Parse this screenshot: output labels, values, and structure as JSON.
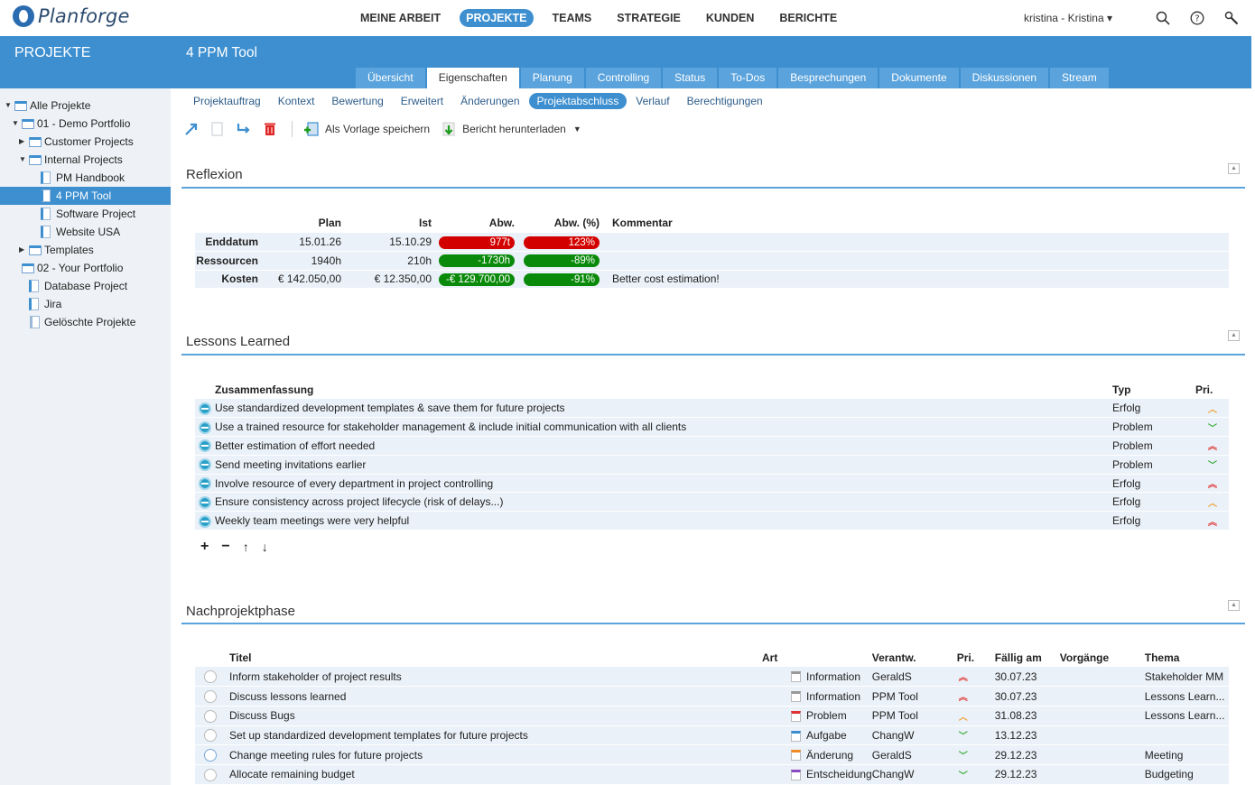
{
  "app": {
    "brand": "Planforge"
  },
  "mainnav": [
    "MEINE ARBEIT",
    "PROJEKTE",
    "TEAMS",
    "STRATEGIE",
    "KUNDEN",
    "BERICHTE"
  ],
  "mainnav_active": "PROJEKTE",
  "user": {
    "label": "kristina - Kristina"
  },
  "sidebar": {
    "header": "PROJEKTE",
    "items": [
      {
        "label": "Alle Projekte",
        "level": 0,
        "type": "folder",
        "expanded": true
      },
      {
        "label": "01 - Demo Portfolio",
        "level": 1,
        "type": "folder",
        "expanded": true
      },
      {
        "label": "Customer Projects",
        "level": 2,
        "type": "folder",
        "expanded": false
      },
      {
        "label": "Internal Projects",
        "level": 2,
        "type": "folder",
        "expanded": true
      },
      {
        "label": "PM Handbook",
        "level": 3,
        "type": "project"
      },
      {
        "label": "4 PPM Tool",
        "level": 3,
        "type": "project",
        "selected": true
      },
      {
        "label": "Software Project",
        "level": 3,
        "type": "project"
      },
      {
        "label": "Website USA",
        "level": 3,
        "type": "project"
      },
      {
        "label": "Templates",
        "level": 2,
        "type": "folder",
        "expanded": false
      },
      {
        "label": "02 - Your Portfolio",
        "level": 1,
        "type": "folder"
      },
      {
        "label": "Database Project",
        "level": 1,
        "type": "project"
      },
      {
        "label": "Jira",
        "level": 1,
        "type": "project"
      },
      {
        "label": "Gelöschte Projekte",
        "level": 1,
        "type": "trash"
      }
    ]
  },
  "project": {
    "title": "4 PPM Tool"
  },
  "tabs": [
    "Übersicht",
    "Eigenschaften",
    "Planung",
    "Controlling",
    "Status",
    "To-Dos",
    "Besprechungen",
    "Dokumente",
    "Diskussionen",
    "Stream"
  ],
  "tabs_active": "Eigenschaften",
  "subtabs": [
    "Projektauftrag",
    "Kontext",
    "Bewertung",
    "Erweitert",
    "Änderungen",
    "Projektabschluss",
    "Verlauf",
    "Berechtigungen"
  ],
  "subtabs_active": "Projektabschluss",
  "toolbar": {
    "save_template": "Als Vorlage speichern",
    "download_report": "Bericht herunterladen"
  },
  "reflexion": {
    "title": "Reflexion",
    "headers": [
      "Plan",
      "Ist",
      "Abw.",
      "Abw. (%)",
      "Kommentar"
    ],
    "rows": [
      {
        "label": "Enddatum",
        "plan": "15.01.26",
        "ist": "15.10.29",
        "abw": "977t",
        "abw_pct": "123%",
        "status": "red",
        "comment": ""
      },
      {
        "label": "Ressourcen",
        "plan": "1940h",
        "ist": "210h",
        "abw": "-1730h",
        "abw_pct": "-89%",
        "status": "green",
        "comment": ""
      },
      {
        "label": "Kosten",
        "plan": "€ 142.050,00",
        "ist": "€ 12.350,00",
        "abw": "-€ 129.700,00",
        "abw_pct": "-91%",
        "status": "green",
        "comment": "Better cost estimation!"
      }
    ]
  },
  "lessons": {
    "title": "Lessons Learned",
    "headers": [
      "Zusammenfassung",
      "Typ",
      "Pri."
    ],
    "rows": [
      {
        "summary": "Use standardized development templates & save them for future projects",
        "typ": "Erfolg",
        "pri": "medium"
      },
      {
        "summary": "Use a trained resource for stakeholder management & include initial communication with all clients",
        "typ": "Problem",
        "pri": "low"
      },
      {
        "summary": "Better estimation of effort needed",
        "typ": "Problem",
        "pri": "high"
      },
      {
        "summary": "Send meeting invitations earlier",
        "typ": "Problem",
        "pri": "low"
      },
      {
        "summary": "Involve resource of every department in project controlling",
        "typ": "Erfolg",
        "pri": "high"
      },
      {
        "summary": "Ensure consistency across project lifecycle (risk of delays...)",
        "typ": "Erfolg",
        "pri": "medium"
      },
      {
        "summary": "Weekly team meetings were very helpful",
        "typ": "Erfolg",
        "pri": "high"
      }
    ]
  },
  "nachprojekt": {
    "title": "Nachprojektphase",
    "headers": [
      "Titel",
      "Art",
      "Verantw.",
      "Pri.",
      "Fällig am",
      "Vorgänge",
      "Thema"
    ],
    "rows": [
      {
        "title": "Inform stakeholder of project results",
        "art": "Information",
        "art_type": "info",
        "owner": "GeraldS",
        "pri": "high",
        "due": "30.07.23",
        "vorgaenge": "",
        "thema": "Stakeholder MM",
        "status": "open"
      },
      {
        "title": "Discuss lessons learned",
        "art": "Information",
        "art_type": "info",
        "owner": "PPM Tool",
        "pri": "high",
        "due": "30.07.23",
        "vorgaenge": "",
        "thema": "Lessons Learn...",
        "status": "open"
      },
      {
        "title": "Discuss Bugs",
        "art": "Problem",
        "art_type": "problem",
        "owner": "PPM Tool",
        "pri": "medium",
        "due": "31.08.23",
        "vorgaenge": "",
        "thema": "Lessons Learn...",
        "status": "open"
      },
      {
        "title": "Set up standardized development templates for future projects",
        "art": "Aufgabe",
        "art_type": "task",
        "owner": "ChangW",
        "pri": "low",
        "due": "13.12.23",
        "vorgaenge": "",
        "thema": "",
        "status": "open"
      },
      {
        "title": "Change meeting rules for future projects",
        "art": "Änderung",
        "art_type": "change",
        "owner": "GeraldS",
        "pri": "low",
        "due": "29.12.23",
        "vorgaenge": "",
        "thema": "Meeting",
        "status": "progress"
      },
      {
        "title": "Allocate remaining budget",
        "art": "Entscheidung",
        "art_type": "decision",
        "owner": "ChangW",
        "pri": "low",
        "due": "29.12.23",
        "vorgaenge": "",
        "thema": "Budgeting",
        "status": "open"
      }
    ]
  },
  "icons": {
    "search": "search-icon",
    "help": "help-icon",
    "settings": "wrench-icon"
  },
  "colors": {
    "accent": "#3d8fd0",
    "positive": "#0a8a0a",
    "negative": "#d30000"
  }
}
